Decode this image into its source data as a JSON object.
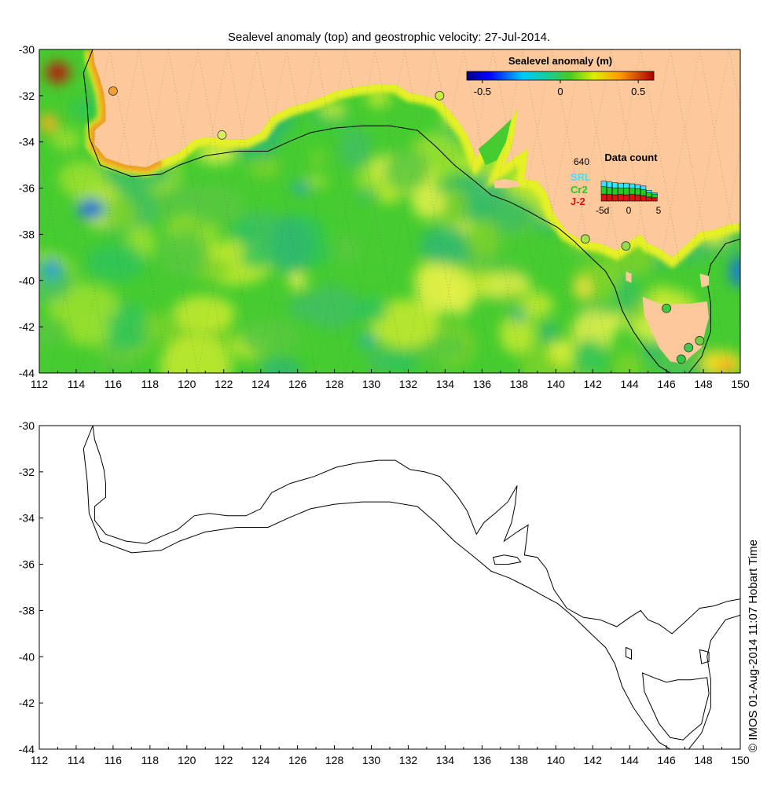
{
  "title": "Sealevel anomaly (top) and geostrophic velocity: 27-Jul-2014.",
  "colorbar": {
    "title": "Sealevel anomaly (m)",
    "min": -0.6,
    "max": 0.6,
    "ticks": [
      "-0.5",
      "0",
      "0.5"
    ],
    "tick_values": [
      -0.5,
      0,
      0.5
    ]
  },
  "data_count": {
    "title": "Data count",
    "max_label": "640",
    "max_value": 640,
    "x_labels": [
      "-5d",
      "0",
      "5"
    ],
    "missions": [
      {
        "name": "SRL",
        "color": "#33e5ff"
      },
      {
        "name": "Cr2",
        "color": "#22cc22"
      },
      {
        "name": "J-2",
        "color": "#dd1111"
      }
    ],
    "bars": [
      {
        "day": -5,
        "srl": 150,
        "cr2": 200,
        "j2": 190
      },
      {
        "day": -4,
        "srl": 150,
        "cr2": 190,
        "j2": 180
      },
      {
        "day": -3,
        "srl": 140,
        "cr2": 190,
        "j2": 170
      },
      {
        "day": -2,
        "srl": 130,
        "cr2": 180,
        "j2": 180
      },
      {
        "day": -1,
        "srl": 130,
        "cr2": 190,
        "j2": 170
      },
      {
        "day": 0,
        "srl": 120,
        "cr2": 170,
        "j2": 180
      },
      {
        "day": 1,
        "srl": 110,
        "cr2": 170,
        "j2": 170
      },
      {
        "day": 2,
        "srl": 100,
        "cr2": 160,
        "j2": 150
      },
      {
        "day": 3,
        "srl": 60,
        "cr2": 120,
        "j2": 110
      },
      {
        "day": 4,
        "srl": 30,
        "cr2": 100,
        "j2": 90
      }
    ]
  },
  "axes": {
    "lon_min": 112,
    "lon_max": 150,
    "lat_min": -44,
    "lat_max": -30,
    "x_tick_labels": [
      "112",
      "114",
      "116",
      "118",
      "120",
      "122",
      "124",
      "126",
      "128",
      "130",
      "132",
      "134",
      "136",
      "138",
      "140",
      "142",
      "144",
      "146",
      "148",
      "150"
    ],
    "y_tick_labels": [
      "-30",
      "-32",
      "-34",
      "-36",
      "-38",
      "-40",
      "-42",
      "-44"
    ]
  },
  "colors": {
    "land": "#fdc99a",
    "ocean_base": "#44cc33",
    "coast_yellow": "#e8f020",
    "coast_orange": "#f0a020"
  },
  "tide_gauges": [
    {
      "lon": 116.0,
      "lat": -31.8,
      "color": "#f0a030"
    },
    {
      "lon": 121.9,
      "lat": -33.7,
      "color": "#d8f060"
    },
    {
      "lon": 133.7,
      "lat": -32.0,
      "color": "#c8ee40"
    },
    {
      "lon": 141.6,
      "lat": -38.2,
      "color": "#a8e050"
    },
    {
      "lon": 143.8,
      "lat": -38.5,
      "color": "#90dd50"
    },
    {
      "lon": 146.0,
      "lat": -41.2,
      "color": "#40cc40"
    },
    {
      "lon": 147.2,
      "lat": -42.9,
      "color": "#40c850"
    },
    {
      "lon": 147.8,
      "lat": -42.6,
      "color": "#70d040"
    },
    {
      "lon": 146.8,
      "lat": -43.4,
      "color": "#30c840"
    }
  ],
  "timestamp": "© IMOS 01-Aug-2014 11:07 Hobart Time"
}
